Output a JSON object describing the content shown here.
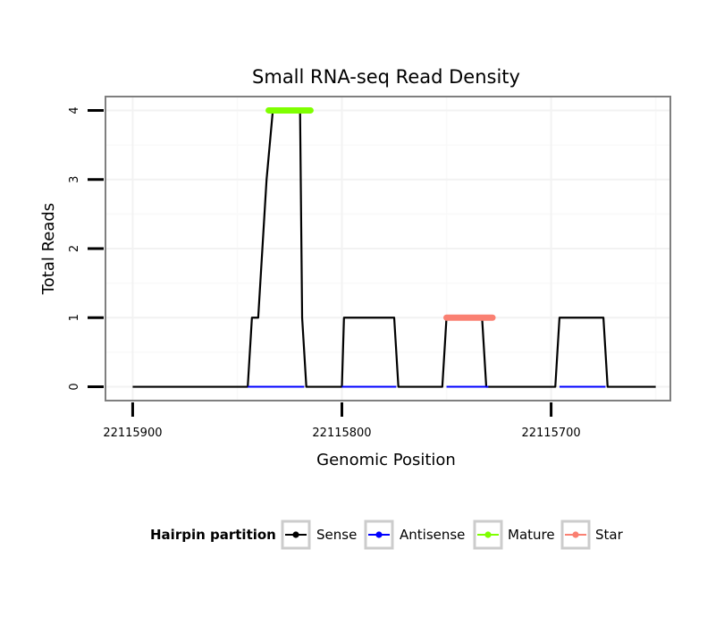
{
  "chart_data": {
    "type": "line",
    "title": "Small RNA-seq Read Density",
    "xlabel": "Genomic Position",
    "ylabel": "Total Reads",
    "xlim": [
      22115913,
      22115643
    ],
    "ylim": [
      -0.2,
      4.2
    ],
    "x_reversed": true,
    "x_ticks": [
      22115900,
      22115800,
      22115700
    ],
    "x_tick_labels": [
      "22115900",
      "22115800",
      "22115700"
    ],
    "y_ticks": [
      0,
      1,
      2,
      3,
      4
    ],
    "y_tick_labels": [
      "0",
      "1",
      "2",
      "3",
      "4"
    ],
    "grid": true,
    "legend": {
      "title": "Hairpin partition",
      "position": "bottom",
      "entries": [
        {
          "label": "Sense",
          "color": "#000000"
        },
        {
          "label": "Antisense",
          "color": "#0000ff"
        },
        {
          "label": "Mature",
          "color": "#7fff00"
        },
        {
          "label": "Star",
          "color": "#fa8072"
        }
      ]
    },
    "series": [
      {
        "name": "Sense",
        "color": "#000000",
        "x": [
          22115900,
          22115845,
          22115843,
          22115840,
          22115838,
          22115836,
          22115833,
          22115828,
          22115820,
          22115819,
          22115817,
          22115815,
          22115800,
          22115799,
          22115775,
          22115773,
          22115752,
          22115750,
          22115733,
          22115731,
          22115712,
          22115710,
          22115698,
          22115696,
          22115675,
          22115673,
          22115650
        ],
        "y": [
          0,
          0,
          1,
          1,
          2,
          3,
          4,
          4,
          4,
          1,
          0,
          0,
          0,
          1,
          1,
          0,
          0,
          1,
          1,
          0,
          0,
          0,
          0,
          1,
          1,
          0,
          0
        ]
      },
      {
        "name": "Antisense",
        "color": "#0000ff",
        "x": [
          22115845,
          22115818,
          22115800,
          22115774,
          22115750,
          22115730,
          22115696,
          22115674
        ],
        "y": [
          0,
          0,
          0,
          0,
          0,
          0,
          0,
          0
        ],
        "segments": true
      },
      {
        "name": "Mature",
        "color": "#7fff00",
        "x": [
          22115835,
          22115815
        ],
        "y": [
          4,
          4
        ]
      },
      {
        "name": "Star",
        "color": "#fa8072",
        "x": [
          22115750,
          22115728
        ],
        "y": [
          1,
          1
        ]
      }
    ]
  }
}
